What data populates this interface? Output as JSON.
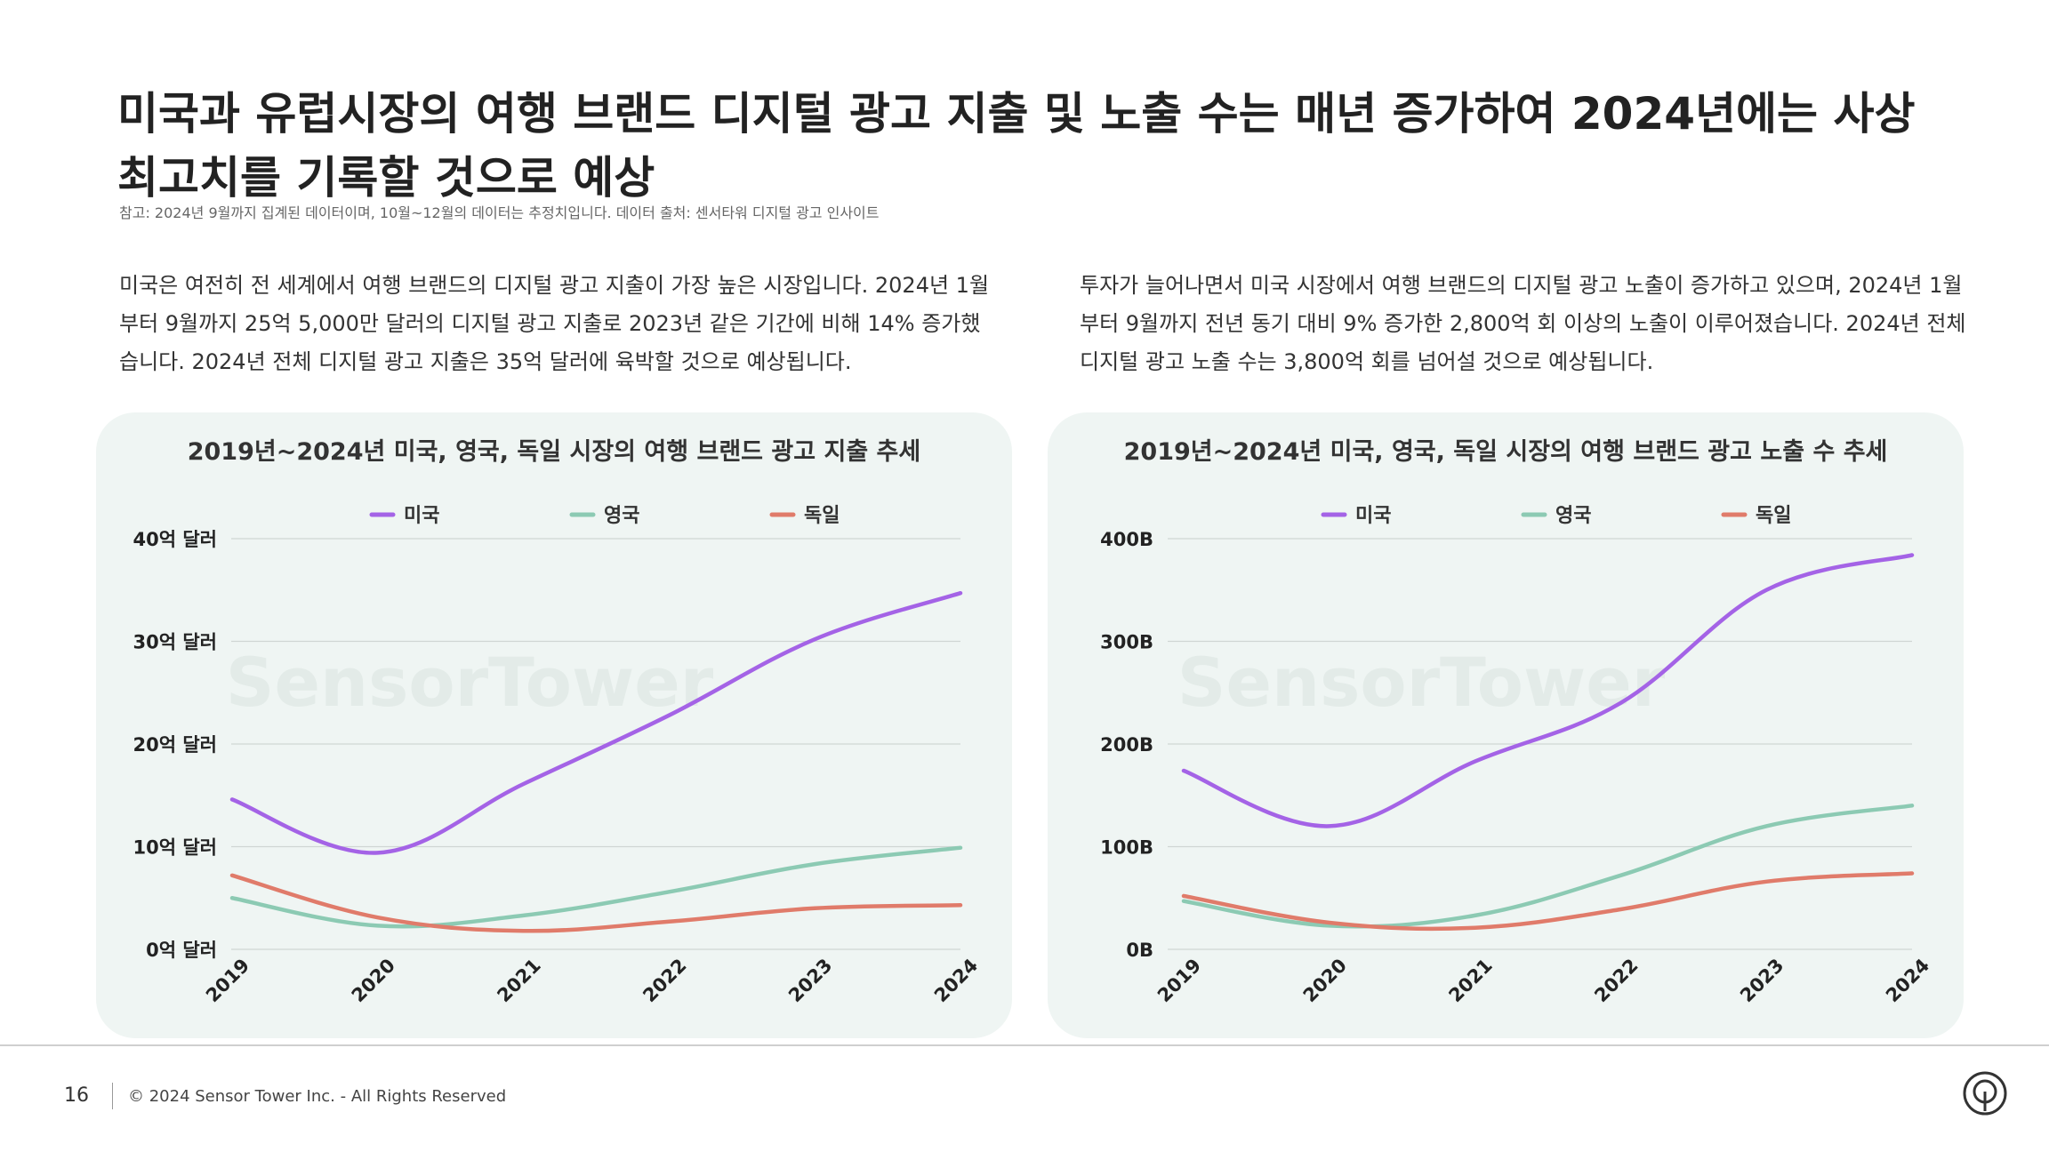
{
  "title": "미국과 유럽시장의 여행 브랜드 디지털 광고 지출 및 노출 수는 매년 증가하여 2024년에는 사상 최고치를 기록할 것으로 예상",
  "note": "참고: 2024년 9월까지 집계된 데이터이며, 10월~12월의 데이터는 추정치입니다. 데이터 출처: 센서타워 디지털 광고 인사이트",
  "desc_left": "미국은 여전히 전 세계에서 여행 브랜드의 디지털 광고 지출이 가장 높은 시장입니다. 2024년 1월부터 9월까지 25억 5,000만 달러의 디지털 광고 지출로 2023년 같은 기간에 비해 14% 증가했습니다. 2024년 전체 디지털 광고 지출은 35억 달러에 육박할 것으로 예상됩니다.",
  "desc_right": "투자가 늘어나면서 미국 시장에서 여행 브랜드의 디지털 광고 노출이 증가하고 있으며, 2024년 1월부터 9월까지 전년 동기 대비 9% 증가한 2,800억 회 이상의 노출이 이루어졌습니다. 2024년 전체 디지털 광고 노출 수는 3,800억 회를 넘어설 것으로 예상됩니다.",
  "watermark": "SensorTower",
  "colors": {
    "us": "#a463e6",
    "uk": "#8ccab3",
    "de": "#e07b6a",
    "grid": "#cfd6d3"
  },
  "footer": {
    "page": "16",
    "copyright": "© 2024 Sensor Tower Inc. - All Rights Reserved",
    "logo_icon": "sensor-tower-logo-icon"
  },
  "chart_data": [
    {
      "type": "line",
      "title": "2019년~2024년 미국, 영국, 독일 시장의 여행 브랜드 광고 지출 추세",
      "x": [
        "2019",
        "2020",
        "2021",
        "2022",
        "2023",
        "2024"
      ],
      "ylim": [
        0,
        40
      ],
      "yticks": [
        0,
        10,
        20,
        30,
        40
      ],
      "ytick_labels": [
        "0억 달러",
        "10억 달러",
        "20억 달러",
        "30억 달러",
        "40억 달러"
      ],
      "legend_position": "top",
      "grid": true,
      "series": [
        {
          "name": "미국",
          "values": [
            14.6,
            9.4,
            16.1,
            22.8,
            30.2,
            34.7
          ]
        },
        {
          "name": "영국",
          "values": [
            5.0,
            2.3,
            3.3,
            5.6,
            8.3,
            9.9
          ]
        },
        {
          "name": "독일",
          "values": [
            7.2,
            3.1,
            1.8,
            2.7,
            4.0,
            4.3
          ]
        }
      ]
    },
    {
      "type": "line",
      "title": "2019년~2024년 미국, 영국, 독일 시장의 여행 브랜드 광고 노출 수 추세",
      "x": [
        "2019",
        "2020",
        "2021",
        "2022",
        "2023",
        "2024"
      ],
      "ylim": [
        0,
        400
      ],
      "yticks": [
        0,
        100,
        200,
        300,
        400
      ],
      "ytick_labels": [
        "0B",
        "100B",
        "200B",
        "300B",
        "400B"
      ],
      "legend_position": "top",
      "grid": true,
      "series": [
        {
          "name": "미국",
          "values": [
            174,
            120,
            183,
            240,
            350,
            384
          ]
        },
        {
          "name": "영국",
          "values": [
            47,
            23,
            33,
            72,
            120,
            140
          ]
        },
        {
          "name": "독일",
          "values": [
            52,
            26,
            21,
            39,
            66,
            74
          ]
        }
      ]
    }
  ]
}
